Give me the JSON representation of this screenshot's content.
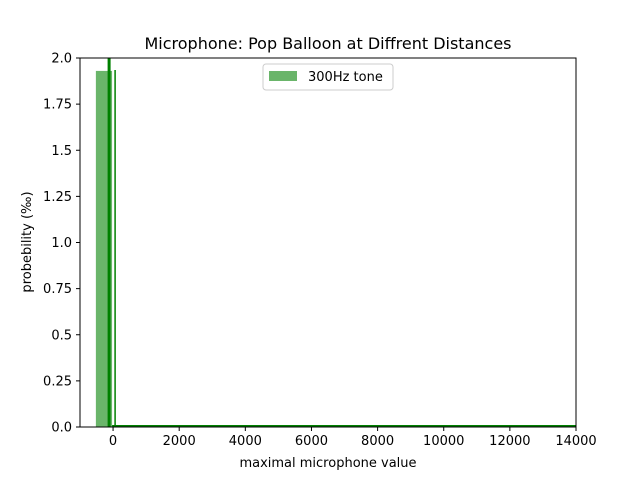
{
  "chart_data": {
    "type": "bar",
    "title": "Microphone: Pop Balloon at Diffrent Distances",
    "xlabel": "maximal microphone value",
    "ylabel": "probebility (‰)",
    "xlim": [
      -1000,
      14000
    ],
    "ylim": [
      0,
      2.0
    ],
    "x_ticks": [
      0,
      2000,
      4000,
      6000,
      8000,
      10000,
      12000,
      14000
    ],
    "x_tick_labels": [
      "0",
      "2000",
      "4000",
      "6000",
      "8000",
      "10000",
      "12000",
      "14000"
    ],
    "y_ticks": [
      0,
      0.25,
      0.5,
      0.75,
      1.0,
      1.25,
      1.5,
      1.75,
      2.0
    ],
    "y_tick_labels": [
      "0.0",
      "0.25",
      "0.5",
      "0.75",
      "1.0",
      "1.25",
      "1.5",
      "1.75",
      "2.0"
    ],
    "legend_position": "top-center",
    "grid": false,
    "series": [
      {
        "name": "300Hz tone",
        "color": "#6ab56a",
        "bins": [
          {
            "x0": -520,
            "x1": -30,
            "value": 1.93
          }
        ]
      }
    ],
    "vertical_line": {
      "x": -120,
      "color": "#008000"
    },
    "step_line": {
      "color": "#008000",
      "bins": [
        {
          "x0": -30,
          "x1": 14000,
          "value": 0.0
        }
      ]
    }
  }
}
